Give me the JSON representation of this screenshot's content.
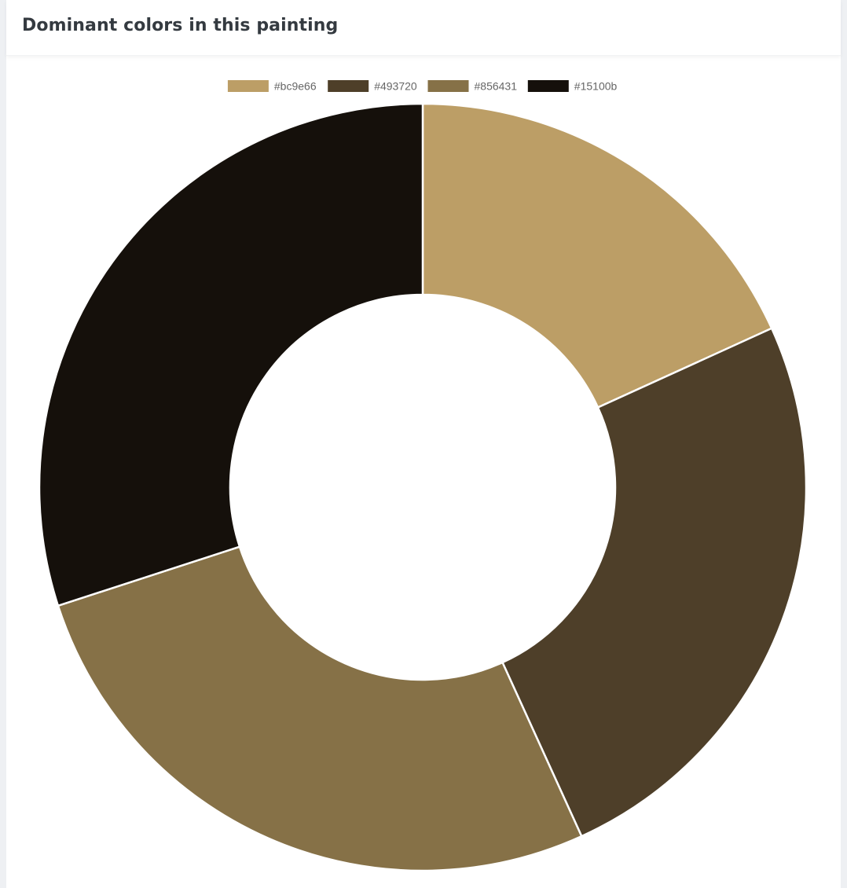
{
  "card": {
    "title": "Dominant colors in this painting"
  },
  "chart_data": {
    "type": "pie",
    "variant": "doughnut",
    "legend": "top",
    "categories": [
      "#bc9e66",
      "#493720",
      "#856431",
      "#15100b"
    ],
    "values": [
      18.2,
      25.0,
      26.8,
      30.0
    ],
    "colors": [
      "#bc9e66",
      "#4e3f29",
      "#867147",
      "#15100b"
    ]
  }
}
